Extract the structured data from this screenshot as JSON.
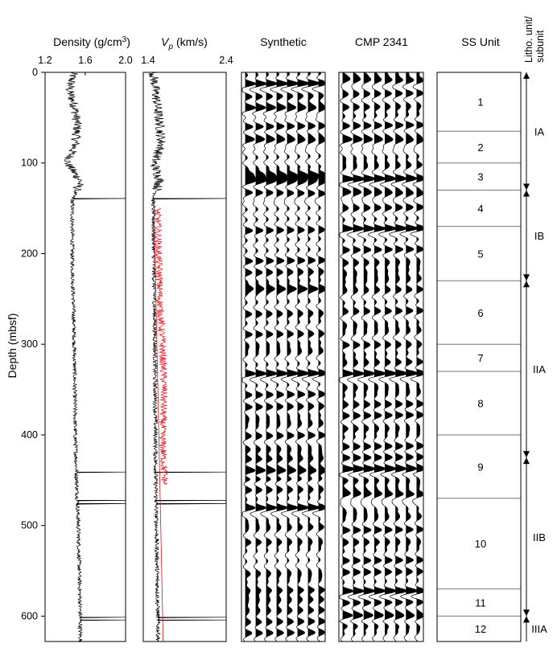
{
  "chart_data": {
    "type": "line",
    "y_axis": {
      "label": "Depth (mbsf)",
      "lim": [
        0,
        628
      ],
      "ticks": [
        0,
        100,
        200,
        300,
        400,
        500,
        600
      ],
      "inverted": true
    },
    "panels": [
      {
        "id": "density",
        "title_main": "Density (g/cm",
        "title_sup": "3",
        "title_end": ")",
        "xlim": [
          1.2,
          2.0
        ],
        "xticks": [
          "1.2",
          "1.6",
          "2.0"
        ],
        "xtick_values": [
          1.2,
          1.6,
          2.0
        ],
        "series_color": "#000000",
        "profile": [
          {
            "depth": 0,
            "value": 1.48
          },
          {
            "depth": 20,
            "value": 1.44
          },
          {
            "depth": 40,
            "value": 1.5
          },
          {
            "depth": 60,
            "value": 1.52
          },
          {
            "depth": 80,
            "value": 1.5
          },
          {
            "depth": 100,
            "value": 1.42
          },
          {
            "depth": 120,
            "value": 1.55
          },
          {
            "depth": 140,
            "value": 1.47
          },
          {
            "depth": 200,
            "value": 1.47
          },
          {
            "depth": 300,
            "value": 1.49
          },
          {
            "depth": 400,
            "value": 1.5
          },
          {
            "depth": 500,
            "value": 1.53
          },
          {
            "depth": 600,
            "value": 1.55
          },
          {
            "depth": 628,
            "value": 1.55
          }
        ],
        "spikes": [
          {
            "depth": 139,
            "value": 2.0
          },
          {
            "depth": 441,
            "value": 2.0
          },
          {
            "depth": 472,
            "value": 2.0
          },
          {
            "depth": 476,
            "value": 2.0
          },
          {
            "depth": 601,
            "value": 2.0
          },
          {
            "depth": 604,
            "value": 2.0
          }
        ]
      },
      {
        "id": "vp",
        "title_main": "V",
        "title_sub": "p",
        "title_end": " (km/s)",
        "xlim": [
          1.4,
          2.4
        ],
        "xticks": [
          "1.4",
          "2.4"
        ],
        "xtick_values": [
          1.4,
          2.4
        ],
        "series_color": "#000000",
        "profile": [
          {
            "depth": 0,
            "value": 1.52
          },
          {
            "depth": 30,
            "value": 1.56
          },
          {
            "depth": 60,
            "value": 1.6
          },
          {
            "depth": 80,
            "value": 1.62
          },
          {
            "depth": 100,
            "value": 1.53
          },
          {
            "depth": 120,
            "value": 1.6
          },
          {
            "depth": 140,
            "value": 1.52
          },
          {
            "depth": 300,
            "value": 1.54
          },
          {
            "depth": 450,
            "value": 1.55
          },
          {
            "depth": 628,
            "value": 1.58
          }
        ],
        "spikes": [
          {
            "depth": 139,
            "value": 2.4
          },
          {
            "depth": 441,
            "value": 2.4
          },
          {
            "depth": 472,
            "value": 2.4
          },
          {
            "depth": 476,
            "value": 2.4
          },
          {
            "depth": 601,
            "value": 2.4
          },
          {
            "depth": 604,
            "value": 2.4
          }
        ],
        "measured_series": {
          "color": "#e0141e",
          "depth_range": [
            150,
            455
          ],
          "profile": [
            {
              "depth": 150,
              "value": 1.57
            },
            {
              "depth": 250,
              "value": 1.6
            },
            {
              "depth": 300,
              "value": 1.63
            },
            {
              "depth": 350,
              "value": 1.65
            },
            {
              "depth": 400,
              "value": 1.63
            },
            {
              "depth": 455,
              "value": 1.66
            }
          ]
        },
        "trend_line": {
          "color": "#e0141e",
          "points": [
            {
              "depth": 150,
              "value": 1.53
            },
            {
              "depth": 628,
              "value": 1.64
            }
          ]
        }
      },
      {
        "id": "synthetic",
        "title": "Synthetic",
        "traces": 8,
        "strong_peaks": [
          12,
          40,
          75,
          112,
          118,
          122,
          133,
          238,
          332,
          440,
          480
        ],
        "medium_peaks": [
          28,
          60,
          175,
          208,
          222,
          245,
          268,
          290,
          305,
          355,
          370,
          385,
          400,
          418,
          428,
          448,
          462,
          500,
          520,
          555,
          570,
          580,
          592,
          605,
          618
        ]
      },
      {
        "id": "cmp",
        "title": "CMP 2341",
        "traces": 8,
        "strong_peaks": [
          8,
          75,
          118,
          133,
          172,
          332,
          438,
          465,
          572,
          600
        ],
        "medium_peaks": [
          22,
          40,
          58,
          100,
          148,
          195,
          212,
          225,
          238,
          262,
          282,
          302,
          318,
          350,
          365,
          378,
          395,
          412,
          425,
          452,
          488,
          505,
          520,
          538,
          552,
          585,
          612
        ]
      },
      {
        "id": "ss_unit",
        "title": "SS Unit",
        "boundaries": [
          65,
          100,
          130,
          170,
          230,
          300,
          330,
          400,
          470,
          570,
          600
        ],
        "units": [
          {
            "label": "1",
            "top": 0,
            "bottom": 65
          },
          {
            "label": "2",
            "top": 65,
            "bottom": 100
          },
          {
            "label": "3",
            "top": 100,
            "bottom": 130
          },
          {
            "label": "4",
            "top": 130,
            "bottom": 170
          },
          {
            "label": "5",
            "top": 170,
            "bottom": 230
          },
          {
            "label": "6",
            "top": 230,
            "bottom": 300
          },
          {
            "label": "7",
            "top": 300,
            "bottom": 330
          },
          {
            "label": "8",
            "top": 330,
            "bottom": 400
          },
          {
            "label": "9",
            "top": 400,
            "bottom": 470
          },
          {
            "label": "10",
            "top": 470,
            "bottom": 570
          },
          {
            "label": "11",
            "top": 570,
            "bottom": 600
          },
          {
            "label": "12",
            "top": 600,
            "bottom": 628
          }
        ]
      }
    ],
    "litho": {
      "title_line1": "Litho. unit/",
      "title_line2": "subunit",
      "units": [
        {
          "label": "IA",
          "top": 0,
          "bottom": 130
        },
        {
          "label": "IB",
          "top": 130,
          "bottom": 230
        },
        {
          "label": "IIA",
          "top": 230,
          "bottom": 425
        },
        {
          "label": "IIB",
          "top": 425,
          "bottom": 600
        },
        {
          "label": "IIIA",
          "top": 600,
          "bottom": 628
        }
      ]
    }
  }
}
